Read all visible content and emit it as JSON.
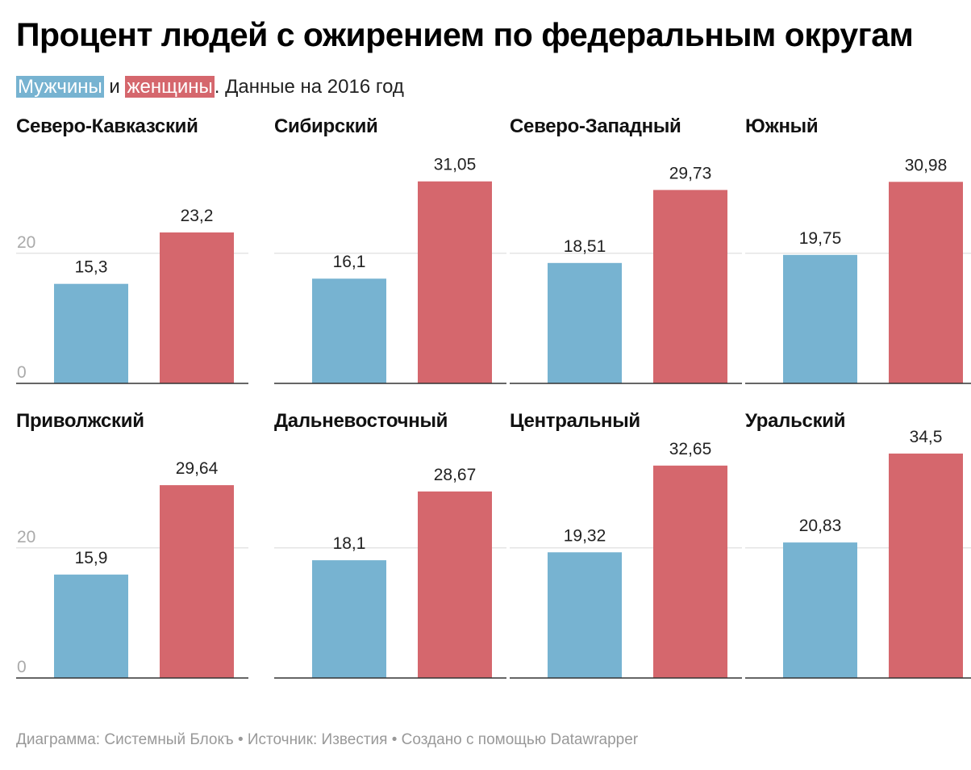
{
  "header": {
    "title": "Процент людей с ожирением по федеральным округам",
    "subtitle_men": "Мужчины",
    "subtitle_and": "и",
    "subtitle_women": "женщины",
    "subtitle_rest": ". Данные на 2016 год"
  },
  "footer": {
    "text": "Диаграмма: Системный Блокъ • Источник: Известия • Создано с помощью Datawrapper"
  },
  "colors": {
    "men": "#77b3d1",
    "women": "#d5676d",
    "grid": "#e4e4e4",
    "axis": "#333333",
    "tick_label": "#aaaaaa",
    "value_label": "#222222"
  },
  "chart_data": {
    "type": "bar",
    "series_names": [
      "Мужчины",
      "женщины"
    ],
    "ylim": [
      0,
      35
    ],
    "yticks": [
      0,
      20
    ],
    "grid": true,
    "panels": [
      {
        "title": "Северо-Кавказский",
        "values": [
          15.3,
          23.2
        ],
        "labels": [
          "15,3",
          "23,2"
        ]
      },
      {
        "title": "Сибирский",
        "values": [
          16.1,
          31.05
        ],
        "labels": [
          "16,1",
          "31,05"
        ]
      },
      {
        "title": "Северо-Западный",
        "values": [
          18.51,
          29.73
        ],
        "labels": [
          "18,51",
          "29,73"
        ]
      },
      {
        "title": "Южный",
        "values": [
          19.75,
          30.98
        ],
        "labels": [
          "19,75",
          "30,98"
        ]
      },
      {
        "title": "Приволжский",
        "values": [
          15.9,
          29.64
        ],
        "labels": [
          "15,9",
          "29,64"
        ]
      },
      {
        "title": "Дальневосточный",
        "values": [
          18.1,
          28.67
        ],
        "labels": [
          "18,1",
          "28,67"
        ]
      },
      {
        "title": "Центральный",
        "values": [
          19.32,
          32.65
        ],
        "labels": [
          "19,32",
          "32,65"
        ]
      },
      {
        "title": "Уральский",
        "values": [
          20.83,
          34.5
        ],
        "labels": [
          "20,83",
          "34,5"
        ]
      }
    ]
  }
}
